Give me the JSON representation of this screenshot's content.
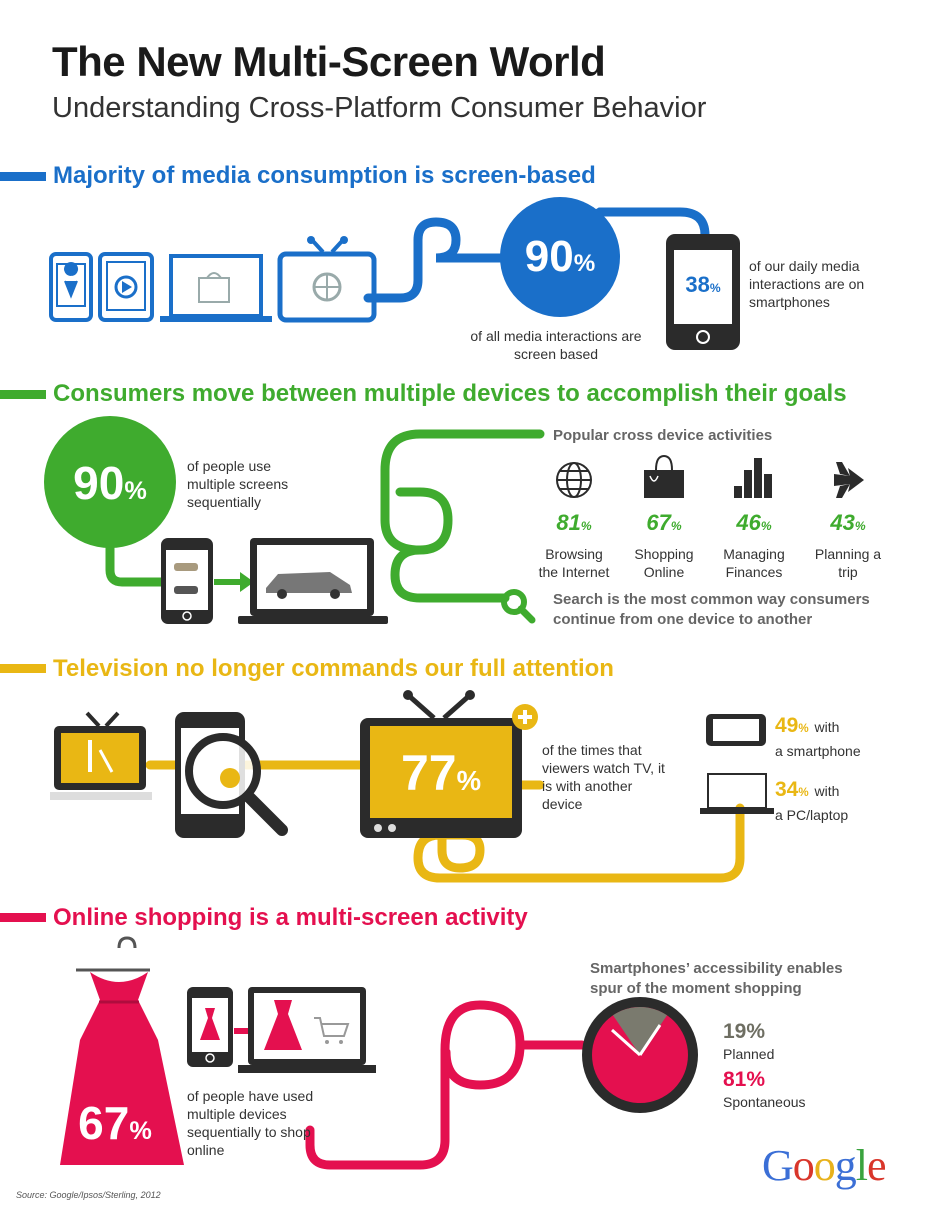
{
  "header": {
    "title": "The New Multi-Screen World",
    "subtitle": "Understanding Cross-Platform Consumer Behavior"
  },
  "colors": {
    "blue": "#1a6fc9",
    "green": "#3fab2e",
    "yellow": "#e9b714",
    "pink": "#e4104f",
    "dark": "#2b2b2b"
  },
  "section1": {
    "heading": "Majority of media consumption is screen-based",
    "stat_main": "90",
    "stat_main_caption": "of all media interactions are screen based",
    "stat_phone": "38",
    "stat_phone_caption": "of our daily media interactions are on smartphones"
  },
  "section2": {
    "heading": "Consumers move between multiple devices to accomplish their goals",
    "stat_main": "90",
    "stat_main_caption": "of people use multiple screens sequentially",
    "activities_title": "Popular cross device activities",
    "activities": [
      {
        "icon": "globe-icon",
        "value": "81",
        "label_line1": "Browsing",
        "label_line2": "the Internet"
      },
      {
        "icon": "shopping-bag-icon",
        "value": "67",
        "label_line1": "Shopping",
        "label_line2": "Online"
      },
      {
        "icon": "bar-chart-icon",
        "value": "46",
        "label_line1": "Managing",
        "label_line2": "Finances"
      },
      {
        "icon": "airplane-icon",
        "value": "43",
        "label_line1": "Planning a",
        "label_line2": "trip"
      }
    ],
    "search_line1": "Search is the most common way consumers",
    "search_line2": "continue from one device to another"
  },
  "section3": {
    "heading": "Television no longer commands our full attention",
    "stat_main": "77",
    "stat_main_caption": "of the times that viewers watch TV, it is with another device",
    "smartphone_value": "49",
    "smartphone_label_a": "with",
    "smartphone_label_b": "a smartphone",
    "pc_value": "34",
    "pc_label_a": "with",
    "pc_label_b": "a PC/laptop"
  },
  "section4": {
    "heading": "Online shopping is a multi-screen activity",
    "stat_main": "67",
    "stat_main_caption": "of people have used multiple devices sequentially to shop online",
    "clock_title_line1": "Smartphones’ accessibility enables",
    "clock_title_line2": "spur of the moment shopping",
    "planned_value": "19%",
    "planned_label": "Planned",
    "spontaneous_value": "81%",
    "spontaneous_label": "Spontaneous",
    "planned_fraction": 0.19
  },
  "footer": {
    "source": "Source: Google/Ipsos/Sterling, 2012",
    "logo_letters": [
      "G",
      "o",
      "o",
      "g",
      "l",
      "e"
    ]
  }
}
